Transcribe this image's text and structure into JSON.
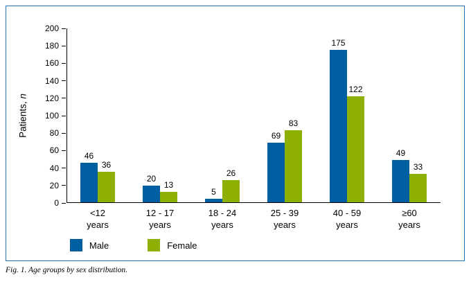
{
  "figure": {
    "caption": "Fig. 1. Age groups by sex distribution."
  },
  "chart_data": {
    "type": "bar",
    "title": "",
    "xlabel": "",
    "ylabel": "Patients, n",
    "ylabel_prefix": "Patients, ",
    "ylabel_italic": "n",
    "ylim": [
      0,
      200
    ],
    "ytick_step": 20,
    "grid": false,
    "legend_position": "bottom-left",
    "categories": [
      "<12 years",
      "12 - 17 years",
      "18 - 24 years",
      "25 - 39 years",
      "40 - 59 years",
      "≥60 years"
    ],
    "series": [
      {
        "name": "Male",
        "color": "#005fa3",
        "values": [
          46,
          20,
          5,
          69,
          175,
          49
        ]
      },
      {
        "name": "Female",
        "color": "#8eb004",
        "values": [
          36,
          13,
          26,
          83,
          122,
          33
        ]
      }
    ]
  }
}
